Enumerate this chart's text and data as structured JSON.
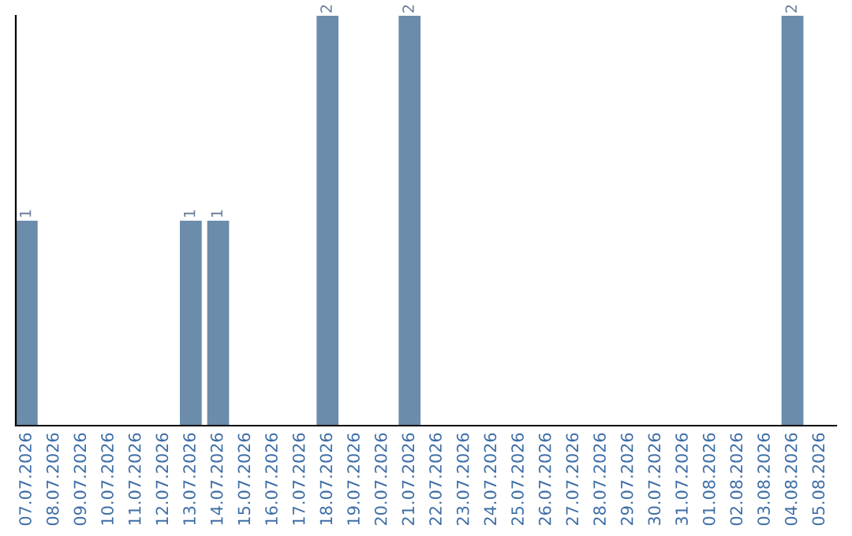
{
  "chart_data": {
    "type": "bar",
    "categories": [
      "07.07.2026",
      "08.07.2026",
      "09.07.2026",
      "10.07.2026",
      "11.07.2026",
      "12.07.2026",
      "13.07.2026",
      "14.07.2026",
      "15.07.2026",
      "16.07.2026",
      "17.07.2026",
      "18.07.2026",
      "19.07.2026",
      "20.07.2026",
      "21.07.2026",
      "22.07.2026",
      "23.07.2026",
      "24.07.2026",
      "25.07.2026",
      "26.07.2026",
      "27.07.2026",
      "28.07.2026",
      "29.07.2026",
      "30.07.2026",
      "31.07.2026",
      "01.08.2026",
      "02.08.2026",
      "03.08.2026",
      "04.08.2026",
      "05.08.2026"
    ],
    "values": [
      1,
      0,
      0,
      0,
      0,
      0,
      1,
      1,
      0,
      0,
      0,
      2,
      0,
      0,
      2,
      0,
      0,
      0,
      0,
      0,
      0,
      0,
      0,
      0,
      0,
      0,
      0,
      0,
      2,
      0
    ],
    "value_labels": [
      "1",
      null,
      null,
      null,
      null,
      null,
      "1",
      "1",
      null,
      null,
      null,
      "2",
      null,
      null,
      "2",
      null,
      null,
      null,
      null,
      null,
      null,
      null,
      null,
      null,
      null,
      null,
      null,
      null,
      "2",
      null
    ],
    "color": "#6b8cab",
    "ylim": [
      0,
      2
    ],
    "tick_labels": "x",
    "grid": false,
    "legend": false
  }
}
